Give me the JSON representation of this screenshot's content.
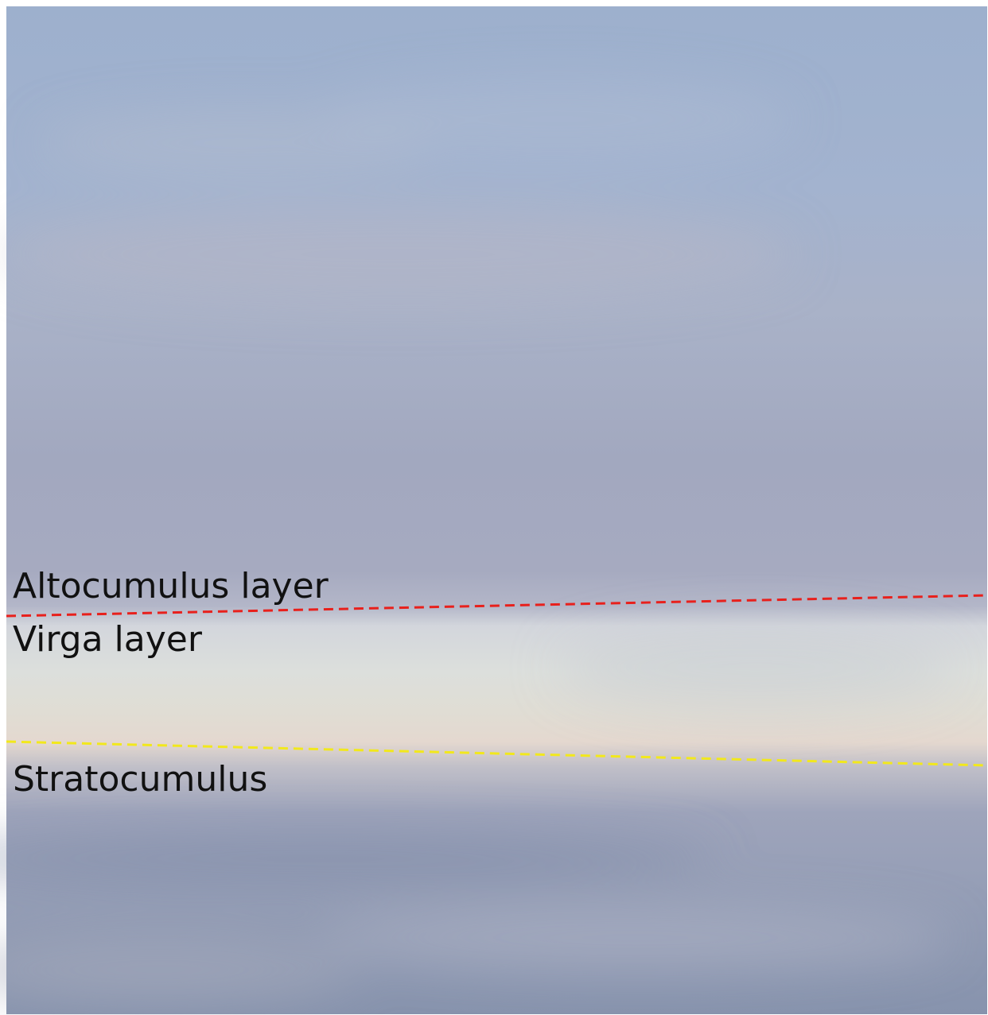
{
  "labels": [
    "Altocumulus layer",
    "Virga layer",
    "Stratocumulus"
  ]
}
